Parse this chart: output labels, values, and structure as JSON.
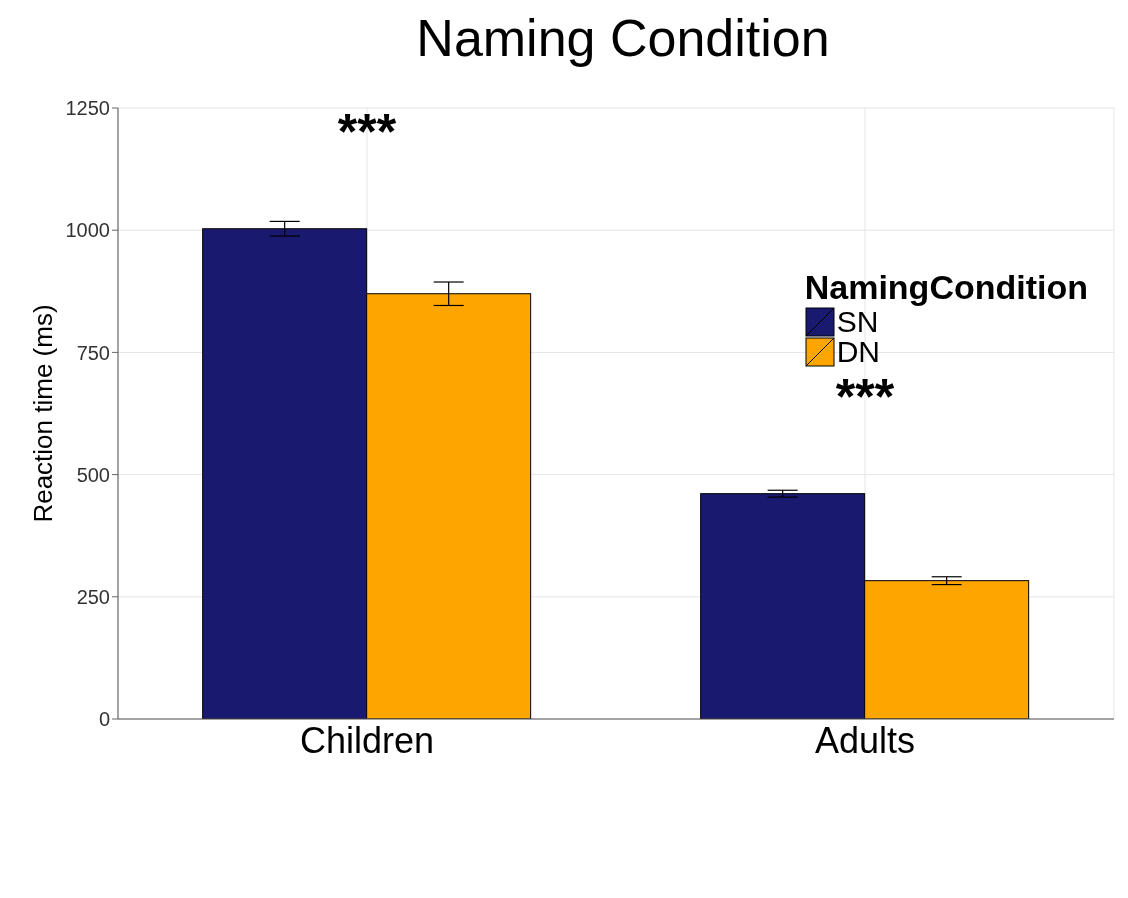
{
  "chart_data": {
    "type": "bar",
    "title": "Naming Condition",
    "ylabel": "Reaction time (ms)",
    "legend_title": "NamingCondition",
    "categories": [
      "Children",
      "Adults"
    ],
    "series": [
      {
        "name": "SN",
        "color": "#191970",
        "values": [
          1003,
          461
        ],
        "errors": [
          15,
          7
        ]
      },
      {
        "name": "DN",
        "color": "#ffa500",
        "values": [
          870,
          283
        ],
        "errors": [
          24,
          8
        ]
      }
    ],
    "ylim": [
      0,
      1250
    ],
    "yticks": [
      0,
      250,
      500,
      750,
      1000,
      1250
    ],
    "grid": true,
    "legend": "top right",
    "annotations": [
      "***",
      "***"
    ]
  }
}
